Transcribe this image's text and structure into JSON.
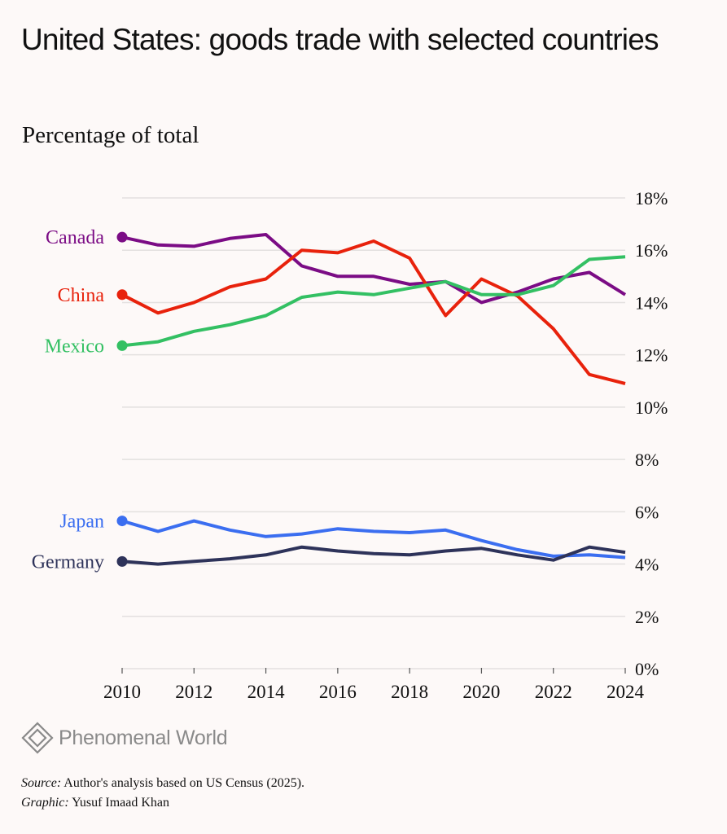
{
  "header": {
    "title": "United States: goods trade with selected countries",
    "subtitle": "Percentage of total"
  },
  "chart_data": {
    "type": "line",
    "title": "United States: goods trade with selected countries",
    "subtitle": "Percentage of total",
    "xlabel": "",
    "ylabel": "Percentage of total",
    "x": [
      2010,
      2011,
      2012,
      2013,
      2014,
      2015,
      2016,
      2017,
      2018,
      2019,
      2020,
      2021,
      2022,
      2023,
      2024
    ],
    "xticks": [
      "2010",
      "2012",
      "2014",
      "2016",
      "2018",
      "2020",
      "2022",
      "2024"
    ],
    "xtick_values": [
      2010,
      2012,
      2014,
      2016,
      2018,
      2020,
      2022,
      2024
    ],
    "ylim": [
      0,
      18
    ],
    "yticks": [
      0,
      2,
      4,
      6,
      8,
      10,
      12,
      14,
      16,
      18
    ],
    "ytick_labels": [
      "0%",
      "2%",
      "4%",
      "6%",
      "8%",
      "10%",
      "12%",
      "14%",
      "16%",
      "18%"
    ],
    "y_axis_side": "right",
    "grid": true,
    "legend": "direct labels at left",
    "series": [
      {
        "name": "Canada",
        "color": "#7b0c85",
        "values": [
          16.5,
          16.2,
          16.15,
          16.45,
          16.6,
          15.4,
          15.0,
          15.0,
          14.7,
          14.8,
          14.0,
          14.4,
          14.9,
          15.15,
          14.3
        ]
      },
      {
        "name": "China",
        "color": "#e8220c",
        "values": [
          14.3,
          13.6,
          14.0,
          14.6,
          14.9,
          16.0,
          15.9,
          16.35,
          15.7,
          13.5,
          14.9,
          14.25,
          13.0,
          11.25,
          10.9
        ]
      },
      {
        "name": "Mexico",
        "color": "#33c063",
        "values": [
          12.35,
          12.5,
          12.9,
          13.15,
          13.5,
          14.2,
          14.4,
          14.3,
          14.55,
          14.8,
          14.3,
          14.3,
          14.65,
          15.65,
          15.75
        ]
      },
      {
        "name": "Japan",
        "color": "#3b6ef0",
        "values": [
          5.65,
          5.25,
          5.65,
          5.3,
          5.05,
          5.15,
          5.35,
          5.25,
          5.2,
          5.3,
          4.9,
          4.55,
          4.3,
          4.35,
          4.25
        ]
      },
      {
        "name": "Germany",
        "color": "#2e335a",
        "values": [
          4.1,
          4.0,
          4.1,
          4.2,
          4.35,
          4.65,
          4.5,
          4.4,
          4.35,
          4.5,
          4.6,
          4.35,
          4.15,
          4.65,
          4.45
        ]
      }
    ]
  },
  "branding": {
    "logo_icon": "diamond-logo-icon",
    "logo_text": "Phenomenal World"
  },
  "footer": {
    "source_label": "Source:",
    "source_text": " Author's analysis based on US Census (2025).",
    "graphic_label": "Graphic:",
    "graphic_text": " Yusuf Imaad Khan"
  }
}
